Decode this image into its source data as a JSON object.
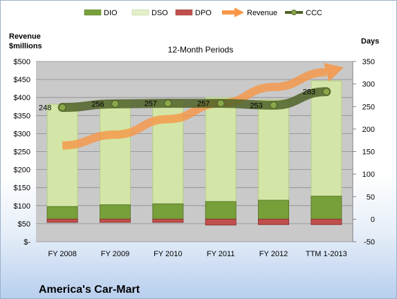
{
  "company": "America's Car-Mart",
  "colors": {
    "dio": "#77a03a",
    "dso": "#d3e6a7",
    "dpo": "#c0504d",
    "revenue": "#f79646",
    "ccc": "#4f6228",
    "plot_bg": "#c9c9c9"
  },
  "chart_data": {
    "type": "bar",
    "title": "12-Month Periods",
    "ylabel_left_line1": "Revenue",
    "ylabel_left_line2": "$millions",
    "ylabel_right": "Days",
    "categories": [
      "FY 2008",
      "FY 2009",
      "FY 2010",
      "FY 2011",
      "FY 2012",
      "TTM 1-2013"
    ],
    "left_axis": {
      "range": [
        0,
        500
      ],
      "ticks": [
        "$-",
        "$50",
        "$100",
        "$150",
        "$200",
        "$250",
        "$300",
        "$350",
        "$400",
        "$450",
        "$500"
      ]
    },
    "right_axis": {
      "range": [
        -50,
        350
      ],
      "ticks": [
        "-50",
        "0",
        "50",
        "100",
        "150",
        "200",
        "250",
        "300",
        "350"
      ]
    },
    "legend_position": "top",
    "series": [
      {
        "name": "DIO",
        "kind": "stacked-bar",
        "axis": "right",
        "values": [
          28,
          32,
          34,
          39,
          42,
          51
        ]
      },
      {
        "name": "DSO",
        "kind": "stacked-bar",
        "axis": "right",
        "values": [
          227,
          231,
          230,
          231,
          223,
          256
        ]
      },
      {
        "name": "DPO",
        "kind": "negative-bar",
        "axis": "right",
        "values": [
          -7,
          -7,
          -7,
          -13,
          -12,
          -12
        ]
      },
      {
        "name": "Revenue",
        "kind": "arrow-line",
        "axis": "left",
        "values": [
          267,
          297,
          340,
          384,
          429,
          470
        ]
      },
      {
        "name": "CCC",
        "kind": "line",
        "axis": "right",
        "values": [
          248,
          256,
          257,
          257,
          253,
          283
        ]
      }
    ],
    "ccc_labels": [
      "248",
      "256",
      "257",
      "257",
      "253",
      "283"
    ]
  }
}
